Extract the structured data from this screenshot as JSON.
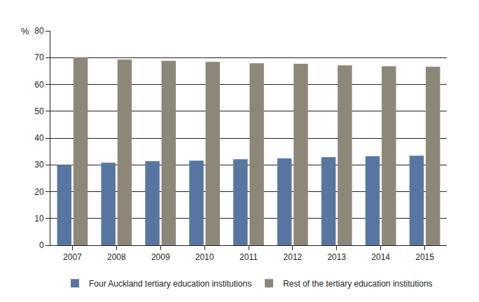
{
  "chart_data": {
    "type": "bar",
    "ylabel": "%",
    "categories": [
      "2007",
      "2008",
      "2009",
      "2010",
      "2011",
      "2012",
      "2013",
      "2014",
      "2015"
    ],
    "series": [
      {
        "name": "Four Auckland tertiary education institutions",
        "color": "#5777a2",
        "values": [
          30.0,
          30.8,
          31.4,
          31.6,
          32.1,
          32.4,
          32.9,
          33.2,
          33.4
        ]
      },
      {
        "name": "Rest of the tertiary education institutions",
        "color": "#8d8778",
        "values": [
          70.1,
          69.3,
          68.8,
          68.4,
          67.9,
          67.7,
          67.1,
          66.8,
          66.6
        ]
      }
    ],
    "ylim": [
      0,
      80
    ],
    "yticks": [
      0,
      10,
      20,
      30,
      40,
      50,
      60,
      70,
      80
    ],
    "grid": true,
    "legend": "bottom"
  }
}
